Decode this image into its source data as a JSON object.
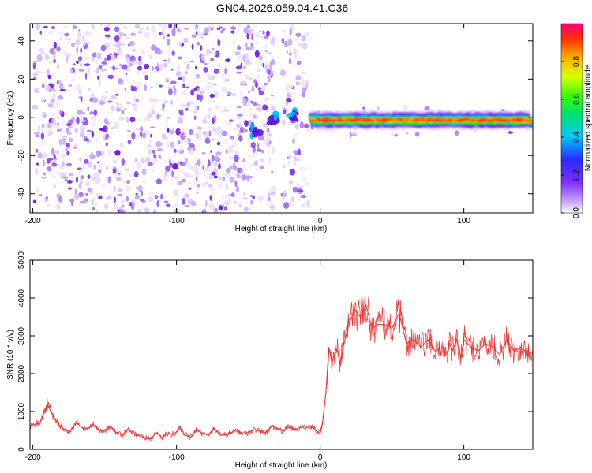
{
  "title": "GN04.2026.059.04.41.C36",
  "chart_data": [
    {
      "type": "heatmap",
      "title": "GN04.2026.059.04.41.C36",
      "xlabel": "Height of straight line (km)",
      "ylabel": "Frequency (Hz)",
      "xlim": [
        -202,
        148
      ],
      "ylim": [
        -50,
        49
      ],
      "xticks": [
        -200,
        -100,
        0,
        100
      ],
      "yticks": [
        -40,
        -20,
        0,
        20,
        40
      ],
      "colorbar": {
        "label": "Normalized spectral amplitude",
        "range": [
          0,
          1
        ],
        "ticks": [
          "0.0",
          "0.2",
          "0.4",
          "0.6",
          "0.8"
        ],
        "tick_values": [
          0.0,
          0.2,
          0.4,
          0.6,
          0.8
        ]
      },
      "features": [
        {
          "kind": "noise",
          "x_range": [
            -200,
            -32
          ],
          "y_range": [
            -50,
            49
          ],
          "amplitude": 0.15
        },
        {
          "kind": "noise",
          "x_range": [
            -26,
            -8
          ],
          "y_range": [
            -50,
            49
          ],
          "amplitude": 0.12
        },
        {
          "kind": "noise",
          "x_range": [
            -8,
            148
          ],
          "y_range": [
            -10,
            5
          ],
          "amplitude": 0.05
        },
        {
          "kind": "blob",
          "x": -45,
          "y": -7,
          "amplitude": 0.3
        },
        {
          "kind": "blob",
          "x": -33,
          "y": -1,
          "amplitude": 0.35
        },
        {
          "kind": "blob",
          "x": -18,
          "y": 1,
          "amplitude": 0.25
        },
        {
          "kind": "band",
          "x_range": [
            -8,
            148
          ],
          "y": -1.5,
          "width": 3,
          "amplitude": 0.95
        }
      ]
    },
    {
      "type": "line",
      "xlabel": "Height of straight line (km)",
      "ylabel": "SNR (10 * v/v)",
      "xlim": [
        -202,
        148
      ],
      "ylim": [
        0,
        5000
      ],
      "xticks": [
        -200,
        -100,
        0,
        100
      ],
      "yticks": [
        0,
        1000,
        2000,
        3000,
        4000,
        5000
      ],
      "color": "#f03030",
      "series": [
        {
          "x": [
            -202,
            -195,
            -190,
            -186,
            -182,
            -178,
            -174,
            -170,
            -166,
            -162,
            -158,
            -154,
            -150,
            -146,
            -142,
            -138,
            -134,
            -130,
            -126,
            -122,
            -118,
            -114,
            -110,
            -106,
            -102,
            -98,
            -94,
            -90,
            -86,
            -82,
            -78,
            -74,
            -70,
            -66,
            -62,
            -58,
            -54,
            -50,
            -46,
            -42,
            -38,
            -34,
            -30,
            -26,
            -22,
            -18,
            -14,
            -10,
            -6,
            -3,
            0,
            2,
            4,
            6,
            8,
            10,
            12,
            14,
            16,
            20,
            24,
            28,
            32,
            36,
            40,
            45,
            50,
            55,
            60,
            65,
            70,
            75,
            80,
            85,
            88,
            90,
            92,
            95,
            98,
            100,
            105,
            110,
            115,
            120,
            125,
            130,
            135,
            140,
            145,
            148
          ],
          "values": [
            620,
            700,
            1200,
            880,
            650,
            520,
            460,
            720,
            580,
            540,
            650,
            500,
            480,
            620,
            440,
            380,
            520,
            410,
            360,
            300,
            280,
            440,
            320,
            420,
            380,
            560,
            380,
            320,
            520,
            420,
            380,
            560,
            420,
            380,
            440,
            520,
            400,
            450,
            520,
            480,
            440,
            620,
            560,
            480,
            620,
            520,
            580,
            560,
            600,
            500,
            400,
            800,
            1500,
            2700,
            2300,
            2500,
            2600,
            2200,
            2700,
            3300,
            3700,
            3500,
            3800,
            3200,
            3300,
            3300,
            3200,
            3600,
            2800,
            2900,
            2700,
            2900,
            2600,
            2700,
            2500,
            2800,
            2600,
            2900,
            2400,
            2900,
            2700,
            2600,
            2800,
            2700,
            2500,
            2900,
            2600,
            2700,
            2500,
            2600
          ]
        }
      ]
    }
  ]
}
